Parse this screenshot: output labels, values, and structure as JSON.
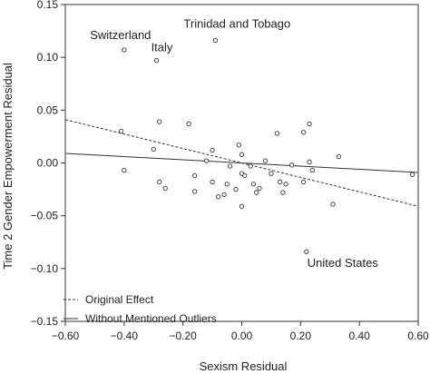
{
  "chart_data": {
    "type": "scatter",
    "xlabel": "Sexism Residual",
    "ylabel": "Time 2 Gender Empowerment Residual",
    "xlim": [
      -0.6,
      0.6
    ],
    "ylim": [
      -0.15,
      0.15
    ],
    "x_ticks": [
      "−0.60",
      "−0.40",
      "−0.20",
      "0.00",
      "0.20",
      "0.40",
      "0.60"
    ],
    "x_tick_values": [
      -0.6,
      -0.4,
      -0.2,
      0.0,
      0.2,
      0.4,
      0.6
    ],
    "y_ticks": [
      "0.15",
      "0.10",
      "0.05",
      "0.00",
      "−0.05",
      "−0.10",
      "−0.15"
    ],
    "y_tick_values": [
      0.15,
      0.1,
      0.05,
      0.0,
      -0.05,
      -0.1,
      -0.15
    ],
    "grid": false,
    "points": [
      {
        "x": -0.4,
        "y": 0.107
      },
      {
        "x": -0.29,
        "y": 0.097
      },
      {
        "x": -0.09,
        "y": 0.116
      },
      {
        "x": 0.22,
        "y": -0.084
      },
      {
        "x": -0.41,
        "y": 0.03
      },
      {
        "x": -0.4,
        "y": -0.007
      },
      {
        "x": -0.3,
        "y": 0.013
      },
      {
        "x": -0.28,
        "y": 0.039
      },
      {
        "x": -0.28,
        "y": -0.018
      },
      {
        "x": -0.26,
        "y": -0.024
      },
      {
        "x": -0.18,
        "y": 0.037
      },
      {
        "x": -0.16,
        "y": -0.012
      },
      {
        "x": -0.16,
        "y": -0.027
      },
      {
        "x": -0.12,
        "y": 0.002
      },
      {
        "x": -0.1,
        "y": 0.012
      },
      {
        "x": -0.1,
        "y": -0.018
      },
      {
        "x": -0.08,
        "y": -0.032
      },
      {
        "x": -0.06,
        "y": -0.03
      },
      {
        "x": -0.05,
        "y": -0.02
      },
      {
        "x": -0.04,
        "y": -0.003
      },
      {
        "x": -0.02,
        "y": -0.025
      },
      {
        "x": -0.01,
        "y": 0.017
      },
      {
        "x": 0.0,
        "y": 0.008
      },
      {
        "x": 0.0,
        "y": -0.01
      },
      {
        "x": 0.01,
        "y": -0.012
      },
      {
        "x": 0.0,
        "y": -0.041
      },
      {
        "x": 0.03,
        "y": -0.003
      },
      {
        "x": 0.04,
        "y": -0.02
      },
      {
        "x": 0.05,
        "y": -0.028
      },
      {
        "x": 0.06,
        "y": -0.024
      },
      {
        "x": 0.08,
        "y": 0.002
      },
      {
        "x": 0.1,
        "y": -0.01
      },
      {
        "x": 0.12,
        "y": 0.028
      },
      {
        "x": 0.13,
        "y": -0.018
      },
      {
        "x": 0.14,
        "y": -0.028
      },
      {
        "x": 0.15,
        "y": -0.02
      },
      {
        "x": 0.17,
        "y": -0.002
      },
      {
        "x": 0.21,
        "y": 0.029
      },
      {
        "x": 0.21,
        "y": -0.018
      },
      {
        "x": 0.23,
        "y": 0.037
      },
      {
        "x": 0.23,
        "y": 0.001
      },
      {
        "x": 0.24,
        "y": -0.007
      },
      {
        "x": 0.31,
        "y": -0.039
      },
      {
        "x": 0.33,
        "y": 0.006
      },
      {
        "x": 0.58,
        "y": -0.011
      }
    ],
    "annotations": [
      {
        "text": "Trinidad and Tobago",
        "x": -0.09,
        "y": 0.116
      },
      {
        "text": "Switzerland",
        "x": -0.4,
        "y": 0.107
      },
      {
        "text": "Italy",
        "x": -0.29,
        "y": 0.097
      },
      {
        "text": "United States",
        "x": 0.22,
        "y": -0.084
      }
    ],
    "lines": [
      {
        "name": "Original Effect",
        "style": "dashed",
        "x": [
          -0.6,
          0.6
        ],
        "y": [
          0.041,
          -0.041
        ]
      },
      {
        "name": "Without Mentioned Outliers",
        "style": "solid",
        "x": [
          -0.6,
          0.6
        ],
        "y": [
          0.009,
          -0.009
        ]
      }
    ],
    "legend_position": "bottom-left"
  }
}
